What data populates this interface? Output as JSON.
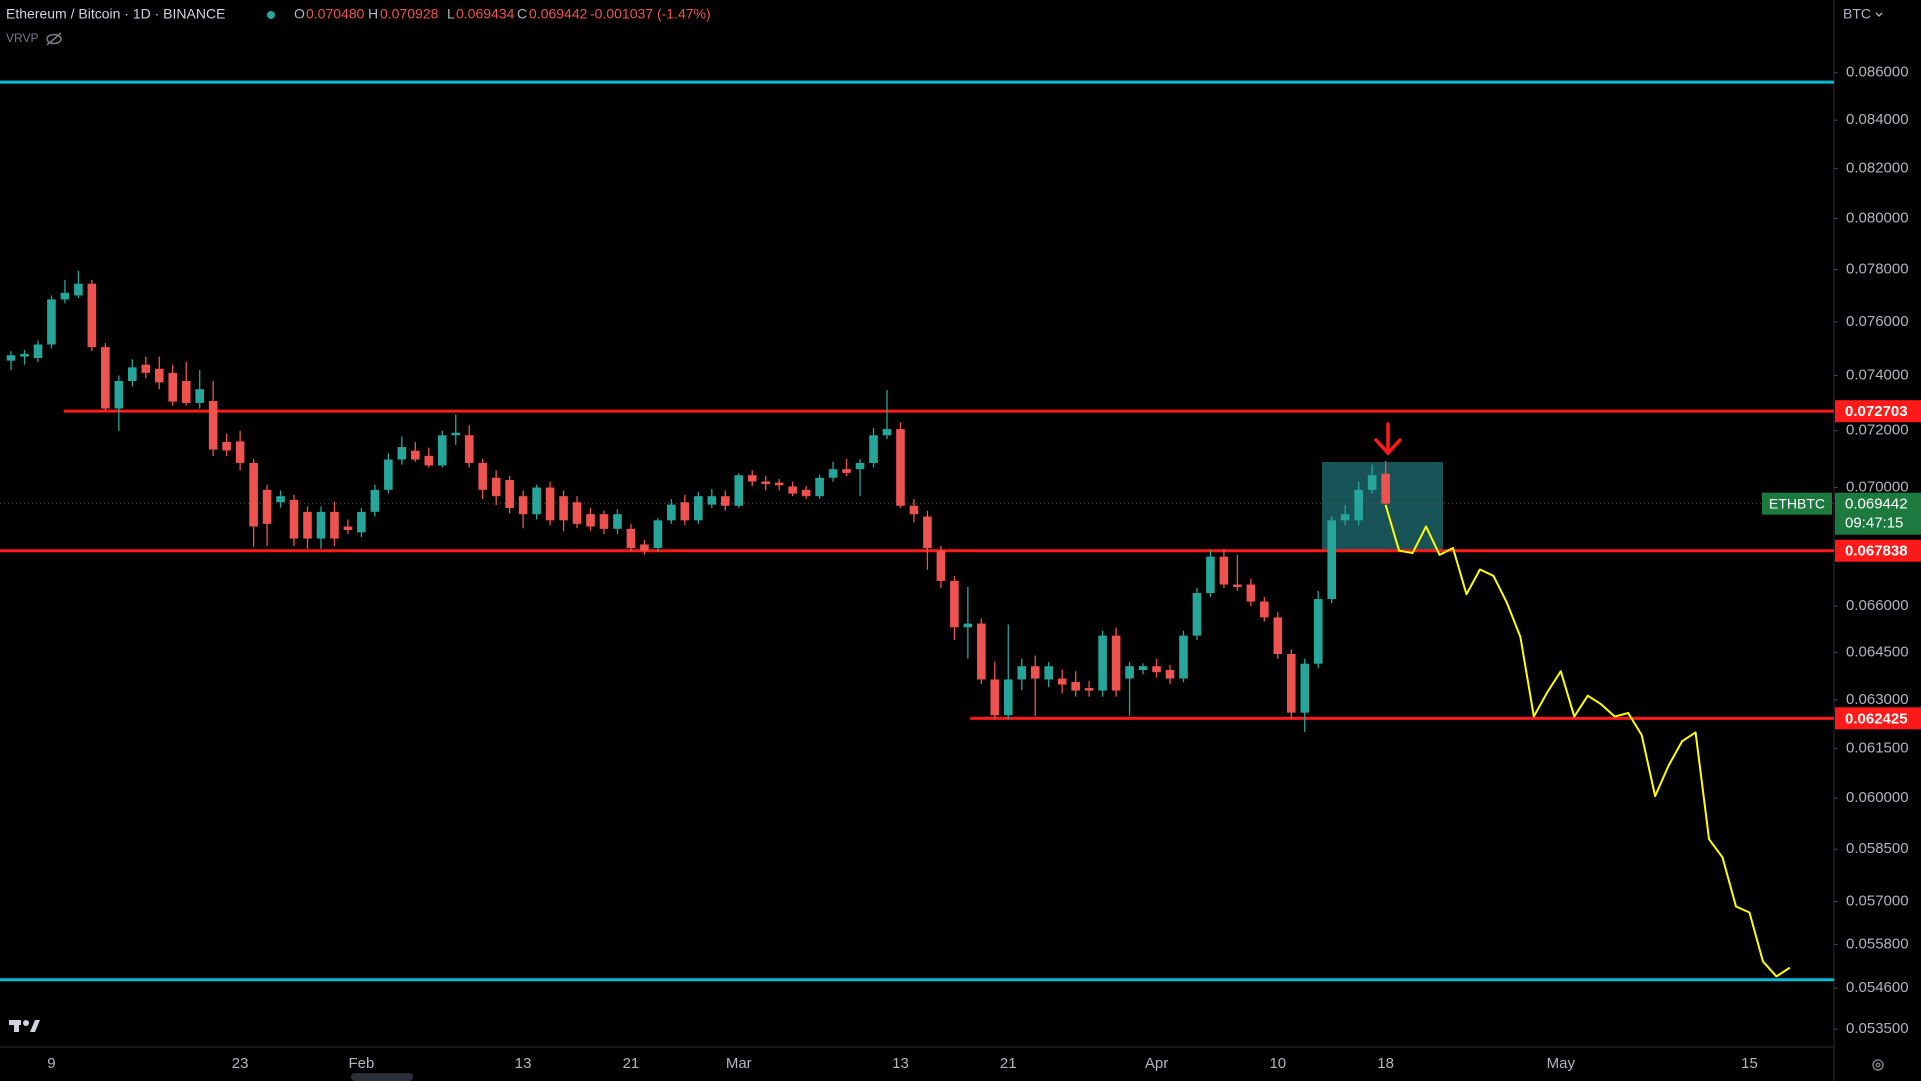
{
  "chart_data": {
    "type": "candlestick",
    "title": "Ethereum / Bitcoin · 1D · BINANCE",
    "ohlc_legend": [
      {
        "label": "O",
        "value": "0.070480"
      },
      {
        "label": "H",
        "value": "0.070928"
      },
      {
        "label": "L",
        "value": "0.069434"
      },
      {
        "label": "C",
        "value": "0.069442"
      }
    ],
    "change": "-0.001037 (-1.47%)",
    "indicator": "VRVP",
    "currency": "BTC",
    "log_scale": true,
    "grid": false,
    "up_color": "#26a69a",
    "down_color": "#ef5350",
    "categories": [
      null,
      null,
      null,
      "9",
      null,
      null,
      null,
      null,
      null,
      null,
      null,
      null,
      null,
      null,
      null,
      null,
      null,
      "23",
      null,
      null,
      null,
      null,
      null,
      null,
      null,
      null,
      "Feb",
      null,
      null,
      null,
      null,
      null,
      null,
      null,
      null,
      null,
      null,
      null,
      "13",
      null,
      null,
      null,
      null,
      null,
      null,
      null,
      "21",
      null,
      null,
      null,
      null,
      null,
      null,
      null,
      "Mar",
      null,
      null,
      null,
      null,
      null,
      null,
      null,
      null,
      null,
      null,
      null,
      "13",
      null,
      null,
      null,
      null,
      null,
      null,
      null,
      "21",
      null,
      null,
      null,
      null,
      null,
      null,
      null,
      null,
      null,
      null,
      "Apr",
      null,
      null,
      null,
      null,
      null,
      null,
      null,
      null,
      "10",
      null,
      null,
      null,
      null,
      null,
      null,
      null,
      "18",
      null,
      null,
      null,
      null,
      null,
      null,
      null,
      null,
      null,
      null,
      null,
      null,
      "May",
      null,
      null,
      null,
      null,
      null,
      null,
      null,
      null,
      null,
      null,
      null,
      null,
      null,
      "15",
      null,
      null,
      null
    ],
    "open": [
      0.07455,
      0.0747,
      0.07465,
      0.07515,
      0.07685,
      0.077,
      0.07745,
      0.07505,
      0.0728,
      0.0738,
      0.0744,
      0.07425,
      0.0741,
      0.0738,
      0.073,
      0.07307,
      0.0716,
      0.07162,
      0.07086,
      0.06992,
      0.06949,
      0.06957,
      0.06916,
      0.06825,
      0.06916,
      0.06866,
      0.06846,
      0.06916,
      0.06992,
      0.07098,
      0.07129,
      0.07111,
      0.07077,
      0.07184,
      0.07184,
      0.07086,
      0.07034,
      0.07026,
      0.0697,
      0.06908,
      0.07,
      0.0697,
      0.06949,
      0.06908,
      0.06908,
      0.06858,
      0.06858,
      0.06805,
      0.06793,
      0.06887,
      0.06949,
      0.06887,
      0.06941,
      0.0697,
      0.06937,
      0.07043,
      0.07021,
      0.07017,
      0.07004,
      0.06992,
      0.0697,
      0.07034,
      0.07064,
      0.07064,
      0.07086,
      0.07184,
      0.07206,
      0.06937,
      0.069,
      0.06784,
      0.06683,
      0.06531,
      0.06543,
      0.06364,
      0.06252,
      0.06364,
      0.06406,
      0.06364,
      0.06367,
      0.06356,
      0.06337,
      0.06329,
      0.06504,
      0.06367,
      0.06394,
      0.06406,
      0.06394,
      0.06367,
      0.06504,
      0.06643,
      0.06764,
      0.06671,
      0.06671,
      0.06615,
      0.06563,
      0.06445,
      0.0626,
      0.06414,
      0.06623,
      0.06887,
      0.06887,
      0.06992,
      0.07048,
      null,
      null,
      null,
      null,
      null,
      null,
      null,
      null,
      null,
      null,
      null,
      null,
      null,
      null,
      null,
      null,
      null,
      null,
      null,
      null,
      null,
      null,
      null,
      null,
      null,
      null,
      null,
      null,
      null,
      null
    ],
    "high": [
      0.0749,
      0.07495,
      0.0753,
      0.077,
      0.0776,
      0.07795,
      0.0776,
      0.0752,
      0.074,
      0.0746,
      0.0747,
      0.0747,
      0.0744,
      0.0745,
      0.0742,
      0.0738,
      0.0719,
      0.072,
      0.071,
      0.0701,
      0.0699,
      0.06975,
      0.06935,
      0.06935,
      0.0695,
      0.0689,
      0.0693,
      0.0701,
      0.0712,
      0.0718,
      0.0716,
      0.0714,
      0.072,
      0.07258,
      0.0722,
      0.071,
      0.0706,
      0.0704,
      0.0699,
      0.0701,
      0.0702,
      0.0699,
      0.0697,
      0.0693,
      0.0692,
      0.06925,
      0.06875,
      0.0682,
      0.06895,
      0.0696,
      0.06975,
      0.06985,
      0.06995,
      0.0699,
      0.0705,
      0.0706,
      0.0704,
      0.0703,
      0.0702,
      0.07005,
      0.07045,
      0.0709,
      0.071,
      0.071,
      0.0721,
      0.07347,
      0.0723,
      0.0696,
      0.0692,
      0.068,
      0.067,
      0.06663,
      0.0656,
      0.0642,
      0.0654,
      0.0643,
      0.0644,
      0.0642,
      0.06395,
      0.0639,
      0.0636,
      0.0652,
      0.0653,
      0.0642,
      0.06415,
      0.0643,
      0.0641,
      0.0652,
      0.0666,
      0.06785,
      0.0679,
      0.0677,
      0.0669,
      0.0663,
      0.0658,
      0.0646,
      0.0643,
      0.0665,
      0.069,
      0.0694,
      0.0702,
      0.0708,
      0.070928,
      null,
      null,
      null,
      null,
      null,
      null,
      null,
      null,
      null,
      null,
      null,
      null,
      null,
      null,
      null,
      null,
      null,
      null,
      null,
      null,
      null,
      null,
      null,
      null,
      null,
      null,
      null,
      null,
      null,
      null
    ],
    "low": [
      0.0742,
      0.0744,
      0.0745,
      0.075,
      0.0767,
      0.0769,
      0.0749,
      0.0727,
      0.072,
      0.0736,
      0.0739,
      0.0735,
      0.0729,
      0.0729,
      0.0728,
      0.0711,
      0.0711,
      0.0706,
      0.06797,
      0.068,
      0.0693,
      0.068,
      0.0679,
      0.0679,
      0.068,
      0.0684,
      0.0683,
      0.069,
      0.0698,
      0.0708,
      0.0709,
      0.0707,
      0.0707,
      0.0715,
      0.0707,
      0.0696,
      0.0694,
      0.0691,
      0.0686,
      0.0689,
      0.0687,
      0.0685,
      0.0686,
      0.0685,
      0.0684,
      0.0684,
      0.0678,
      0.0677,
      0.0678,
      0.06875,
      0.0687,
      0.06875,
      0.0693,
      0.0692,
      0.0693,
      0.07005,
      0.0699,
      0.0699,
      0.0697,
      0.0696,
      0.0696,
      0.0702,
      0.0704,
      0.0697,
      0.0707,
      0.0717,
      0.0693,
      0.0688,
      0.0672,
      0.0666,
      0.0649,
      0.0643,
      0.0635,
      0.0624,
      0.0624,
      0.0633,
      0.0625,
      0.0634,
      0.0632,
      0.0631,
      0.0631,
      0.0631,
      0.0631,
      0.0625,
      0.0638,
      0.0637,
      0.0635,
      0.06355,
      0.0649,
      0.0663,
      0.0666,
      0.0665,
      0.066,
      0.0655,
      0.0643,
      0.0624,
      0.062,
      0.064,
      0.0661,
      0.0687,
      0.0687,
      0.0698,
      0.069434,
      null,
      null,
      null,
      null,
      null,
      null,
      null,
      null,
      null,
      null,
      null,
      null,
      null,
      null,
      null,
      null,
      null,
      null,
      null,
      null,
      null,
      null,
      null,
      null,
      null,
      null,
      null,
      null,
      null,
      null
    ],
    "close": [
      0.07475,
      0.0748,
      0.07515,
      0.07685,
      0.0771,
      0.07745,
      0.07505,
      0.0728,
      0.0738,
      0.0743,
      0.0741,
      0.07375,
      0.07305,
      0.073,
      0.0735,
      0.07133,
      0.0713,
      0.07086,
      0.06866,
      0.06875,
      0.0697,
      0.06825,
      0.06825,
      0.06916,
      0.06825,
      0.06854,
      0.06916,
      0.06992,
      0.07098,
      0.07142,
      0.07098,
      0.07077,
      0.07184,
      0.07193,
      0.07086,
      0.06992,
      0.0697,
      0.06929,
      0.06908,
      0.07,
      0.06887,
      0.06887,
      0.06875,
      0.06866,
      0.06858,
      0.06908,
      0.06793,
      0.06784,
      0.06887,
      0.06941,
      0.06887,
      0.0697,
      0.0697,
      0.06937,
      0.07043,
      0.07021,
      0.07012,
      0.07008,
      0.06979,
      0.0697,
      0.07034,
      0.07064,
      0.07051,
      0.07086,
      0.07184,
      0.07206,
      0.06937,
      0.06908,
      0.06793,
      0.06683,
      0.06531,
      0.06543,
      0.06364,
      0.06252,
      0.06364,
      0.06406,
      0.06367,
      0.06406,
      0.06348,
      0.06329,
      0.06329,
      0.06504,
      0.06329,
      0.06406,
      0.06406,
      0.06387,
      0.06367,
      0.06504,
      0.06643,
      0.06764,
      0.06671,
      0.06663,
      0.06615,
      0.06563,
      0.06445,
      0.0626,
      0.06414,
      0.06623,
      0.06887,
      0.06908,
      0.06992,
      0.07043,
      0.069442,
      null,
      null,
      null,
      null,
      null,
      null,
      null,
      null,
      null,
      null,
      null,
      null,
      null,
      null,
      null,
      null,
      null,
      null,
      null,
      null,
      null,
      null,
      null,
      null,
      null,
      null,
      null,
      null,
      null,
      null
    ],
    "projection": {
      "color": "#ffff00",
      "values": [
        null,
        null,
        null,
        null,
        null,
        null,
        null,
        null,
        null,
        null,
        null,
        null,
        null,
        null,
        null,
        null,
        null,
        null,
        null,
        null,
        null,
        null,
        null,
        null,
        null,
        null,
        null,
        null,
        null,
        null,
        null,
        null,
        null,
        null,
        null,
        null,
        null,
        null,
        null,
        null,
        null,
        null,
        null,
        null,
        null,
        null,
        null,
        null,
        null,
        null,
        null,
        null,
        null,
        null,
        null,
        null,
        null,
        null,
        null,
        null,
        null,
        null,
        null,
        null,
        null,
        null,
        null,
        null,
        null,
        null,
        null,
        null,
        null,
        null,
        null,
        null,
        null,
        null,
        null,
        null,
        null,
        null,
        null,
        null,
        null,
        null,
        null,
        null,
        null,
        null,
        null,
        null,
        null,
        null,
        null,
        null,
        null,
        null,
        null,
        null,
        null,
        null,
        0.0694,
        0.06784,
        0.06776,
        0.06866,
        0.0677,
        0.06793,
        0.06639,
        0.06721,
        0.067,
        0.06611,
        0.065,
        0.06248,
        0.06324,
        0.0639,
        0.06248,
        0.06313,
        0.06286,
        0.06248,
        0.06259,
        0.06191,
        0.06006,
        0.06098,
        0.06172,
        0.06199,
        0.05879,
        0.05826,
        0.05686,
        0.05669,
        0.05533,
        0.05492,
        0.05516
      ]
    },
    "levels": {
      "color": "#ff1a1a",
      "values": [
        0.072703,
        0.067838,
        0.062425
      ]
    },
    "range_lines": {
      "color": "#00bcd4",
      "values": [
        0.0856,
        0.05483
      ]
    },
    "last": {
      "symbol": "ETHBTC",
      "price": 0.069442,
      "countdown": "09:47:15",
      "color": "#1d7a3e"
    },
    "ylim": [
      0.05303,
      0.08916
    ],
    "yticks": [
      {
        "value": 0.086,
        "label": "0.086000"
      },
      {
        "value": 0.084,
        "label": "0.084000"
      },
      {
        "value": 0.082,
        "label": "0.082000"
      },
      {
        "value": 0.08,
        "label": "0.080000"
      },
      {
        "value": 0.078,
        "label": "0.078000"
      },
      {
        "value": 0.076,
        "label": "0.076000"
      },
      {
        "value": 0.074,
        "label": "0.074000"
      },
      {
        "value": 0.072,
        "label": "0.072000"
      },
      {
        "value": 0.07,
        "label": "0.070000"
      },
      {
        "value": 0.066,
        "label": "0.066000"
      },
      {
        "value": 0.0645,
        "label": "0.064500"
      },
      {
        "value": 0.063,
        "label": "0.063000"
      },
      {
        "value": 0.0615,
        "label": "0.061500"
      },
      {
        "value": 0.06,
        "label": "0.060000"
      },
      {
        "value": 0.0585,
        "label": "0.058500"
      },
      {
        "value": 0.057,
        "label": "0.057000"
      },
      {
        "value": 0.0558,
        "label": "0.055800"
      },
      {
        "value": 0.0546,
        "label": "0.054600"
      },
      {
        "value": 0.0535,
        "label": "0.053500"
      }
    ]
  }
}
